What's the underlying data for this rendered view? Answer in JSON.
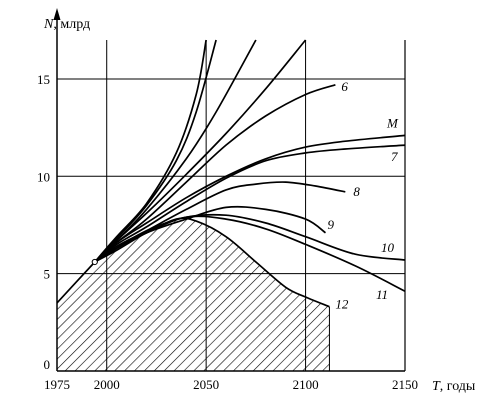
{
  "chart_data": {
    "type": "line",
    "xlabel_var": "T",
    "xlabel_unit": ", годы",
    "ylabel_var": "N",
    "ylabel_unit": ", млрд",
    "xlim": [
      1975,
      2150
    ],
    "ylim": [
      0,
      17
    ],
    "x_ticks": [
      1975,
      2000,
      2050,
      2100,
      2150
    ],
    "y_ticks": [
      0,
      5,
      10,
      15
    ],
    "grid": true,
    "start_point": {
      "x": 1994,
      "y": 5.6
    },
    "series": [
      {
        "name": "",
        "x": [
          1975,
          1994
        ],
        "y": [
          3.5,
          5.6
        ]
      },
      {
        "name": "",
        "x": [
          1994,
          2005,
          2020,
          2035,
          2045,
          2050
        ],
        "y": [
          5.6,
          6.9,
          8.6,
          11.2,
          14.2,
          17.0
        ]
      },
      {
        "name": "",
        "x": [
          1994,
          2005,
          2020,
          2035,
          2045,
          2055
        ],
        "y": [
          5.6,
          6.8,
          8.5,
          10.8,
          13.3,
          17.0
        ]
      },
      {
        "name": "",
        "x": [
          1994,
          2005,
          2020,
          2040,
          2055,
          2075
        ],
        "y": [
          5.6,
          6.7,
          8.3,
          10.9,
          13.3,
          17.0
        ]
      },
      {
        "name": "",
        "x": [
          1994,
          2005,
          2020,
          2040,
          2060,
          2080,
          2100
        ],
        "y": [
          5.6,
          6.7,
          8.1,
          10.1,
          12.2,
          14.5,
          17.0
        ]
      },
      {
        "name": "6",
        "x": [
          1994,
          2005,
          2020,
          2040,
          2060,
          2080,
          2100,
          2115
        ],
        "y": [
          5.6,
          6.6,
          7.8,
          9.7,
          11.6,
          13.1,
          14.2,
          14.7
        ]
      },
      {
        "name": "M",
        "x": [
          1994,
          2005,
          2020,
          2040,
          2060,
          2080,
          2100,
          2120,
          2150
        ],
        "y": [
          5.6,
          6.6,
          7.6,
          8.9,
          10.0,
          10.9,
          11.5,
          11.8,
          12.1
        ]
      },
      {
        "name": "7",
        "x": [
          1994,
          2005,
          2020,
          2040,
          2060,
          2080,
          2100,
          2120,
          2150
        ],
        "y": [
          5.6,
          6.5,
          7.4,
          8.7,
          9.9,
          10.8,
          11.2,
          11.4,
          11.6
        ]
      },
      {
        "name": "8",
        "x": [
          1994,
          2005,
          2020,
          2040,
          2060,
          2075,
          2090,
          2105,
          2120
        ],
        "y": [
          5.6,
          6.4,
          7.2,
          8.3,
          9.3,
          9.6,
          9.7,
          9.5,
          9.2
        ]
      },
      {
        "name": "9",
        "x": [
          1994,
          2005,
          2020,
          2040,
          2060,
          2080,
          2100,
          2110
        ],
        "y": [
          5.6,
          6.3,
          7.1,
          7.8,
          8.4,
          8.3,
          7.8,
          7.1
        ]
      },
      {
        "name": "10",
        "x": [
          1994,
          2005,
          2020,
          2040,
          2060,
          2080,
          2100,
          2125,
          2150
        ],
        "y": [
          5.6,
          6.3,
          7.2,
          7.9,
          8.0,
          7.6,
          6.9,
          6.0,
          5.7
        ]
      },
      {
        "name": "11",
        "x": [
          1994,
          2005,
          2020,
          2040,
          2060,
          2080,
          2100,
          2125,
          2150
        ],
        "y": [
          5.6,
          6.3,
          7.1,
          7.9,
          7.8,
          7.3,
          6.5,
          5.4,
          4.1
        ]
      },
      {
        "name": "12",
        "x": [
          1994,
          2005,
          2020,
          2035,
          2045,
          2060,
          2075,
          2090,
          2100,
          2112
        ],
        "y": [
          5.6,
          6.2,
          7.1,
          7.8,
          7.7,
          6.9,
          5.6,
          4.3,
          3.8,
          3.3
        ]
      }
    ],
    "hatched_region": {
      "name": "12",
      "x_end": 2112
    }
  }
}
